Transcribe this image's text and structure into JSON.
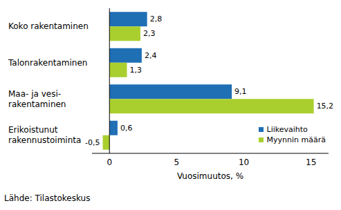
{
  "chart_data": {
    "type": "bar",
    "orientation": "horizontal",
    "categories": [
      "Koko rakentaminen",
      "Talonrakentaminen",
      "Maa- ja vesi-\nrakentaminen",
      "Erikoistunut\nrakennustoiminta"
    ],
    "series": [
      {
        "name": "Liikevaihto",
        "color": "#1f6fb5",
        "values": [
          2.8,
          2.4,
          9.1,
          0.6
        ],
        "value_labels": [
          "2,8",
          "2,4",
          "9,1",
          "0,6"
        ]
      },
      {
        "name": "Myynnin määrä",
        "color": "#a9cf2f",
        "values": [
          2.3,
          1.3,
          15.2,
          -0.5
        ],
        "value_labels": [
          "2,3",
          "1,3",
          "15,2",
          "-0,5"
        ]
      }
    ],
    "x_label": "Vuosimuutos, %",
    "xlim": [
      -1.3,
      16.3
    ],
    "xticks": [
      0,
      5,
      10,
      15
    ],
    "grid": false,
    "legend": "lower right",
    "data_labels": true,
    "annotations": [
      "Lähde: Tilastokeskus"
    ]
  }
}
